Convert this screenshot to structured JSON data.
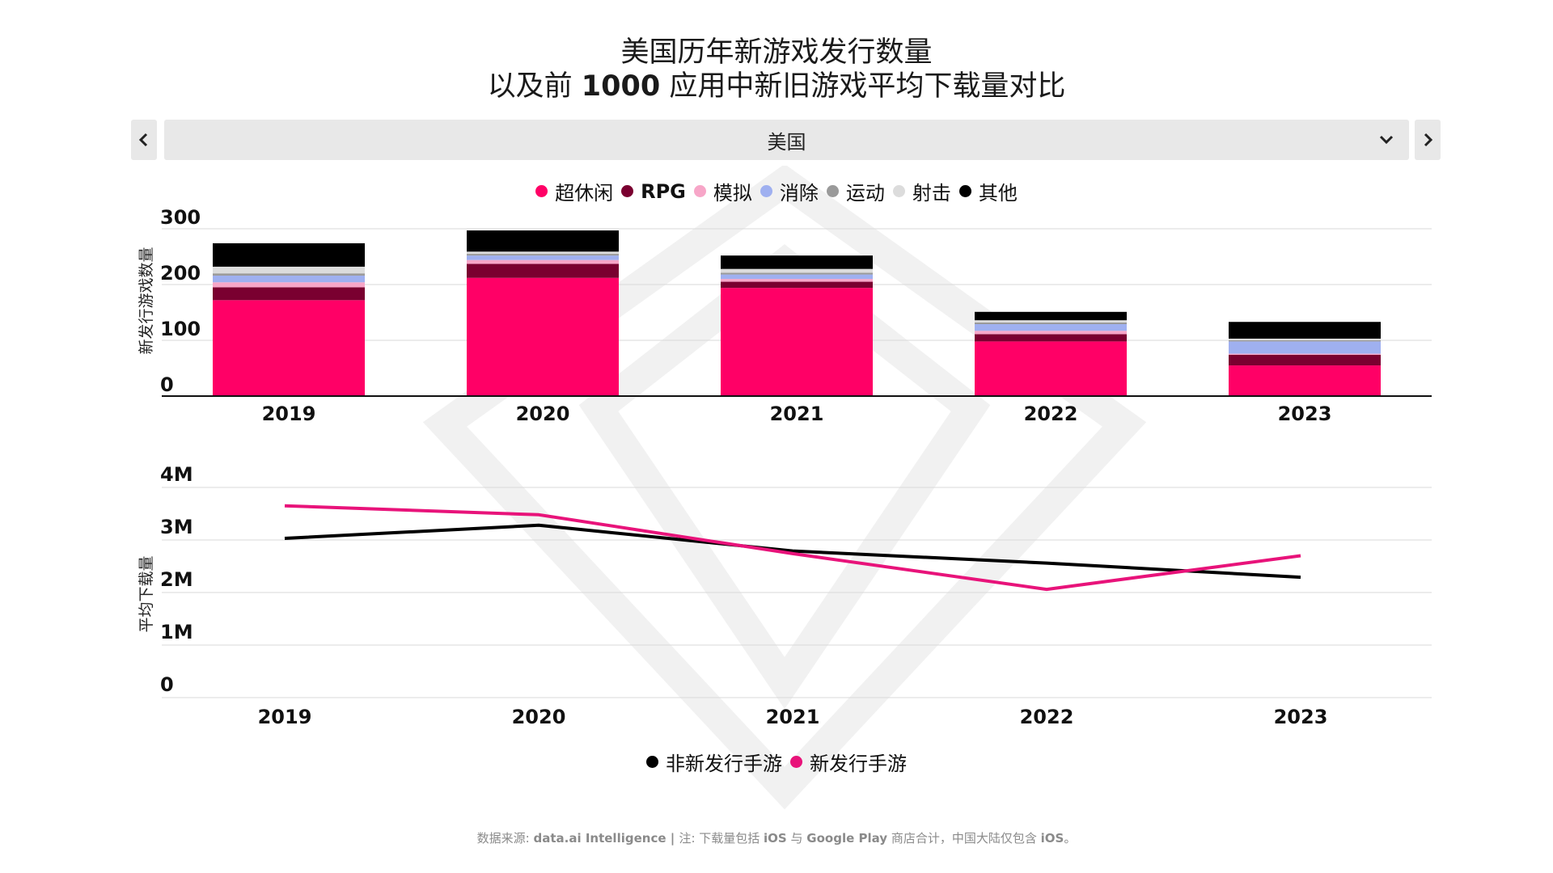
{
  "title": {
    "line1": "美国历年新游戏发行数量",
    "line2_pre": "以及前 ",
    "line2_bold": "1000",
    "line2_post": " 应用中新旧游戏平均下载量对比"
  },
  "selector": {
    "value": "美国",
    "prev_icon": "chevron-left-icon",
    "next_icon": "chevron-right-icon",
    "dropdown_icon": "chevron-down-icon"
  },
  "colors": {
    "超休闲": "#ff0066",
    "RPG": "#7a0030",
    "模拟": "#f7a6c8",
    "消除": "#9fb0f0",
    "运动": "#9a9a9a",
    "射击": "#dcdcdc",
    "其他": "#000000",
    "non_new": "#000000",
    "new": "#e8137a"
  },
  "chart_data": [
    {
      "type": "bar",
      "stacked": true,
      "ylabel": "新发行游戏数量",
      "ylim": [
        0,
        300
      ],
      "yticks": [
        0,
        100,
        200,
        300
      ],
      "categories": [
        "2019",
        "2020",
        "2021",
        "2022",
        "2023"
      ],
      "series": [
        {
          "name": "超休闲",
          "bold": false,
          "values": [
            172,
            212,
            194,
            98,
            55
          ]
        },
        {
          "name": "RPG",
          "bold": true,
          "values": [
            23,
            25,
            11,
            13,
            19
          ]
        },
        {
          "name": "模拟",
          "bold": false,
          "values": [
            9,
            7,
            5,
            6,
            2
          ]
        },
        {
          "name": "消除",
          "bold": false,
          "values": [
            12,
            8,
            8,
            12,
            22
          ]
        },
        {
          "name": "运动",
          "bold": false,
          "values": [
            4,
            3,
            3,
            3,
            2
          ]
        },
        {
          "name": "射击",
          "bold": false,
          "values": [
            12,
            4,
            7,
            4,
            3
          ]
        },
        {
          "name": "其他",
          "bold": false,
          "values": [
            42,
            38,
            24,
            15,
            30
          ]
        }
      ],
      "legend": "top-center"
    },
    {
      "type": "line",
      "ylabel": "平均下载量",
      "ylim": [
        0,
        4000000
      ],
      "yticks": [
        0,
        1000000,
        2000000,
        3000000,
        4000000
      ],
      "ytick_labels": [
        "0",
        "1M",
        "2M",
        "3M",
        "4M"
      ],
      "categories": [
        "2019",
        "2020",
        "2021",
        "2022",
        "2023"
      ],
      "series": [
        {
          "name": "非新发行手游",
          "color_key": "non_new",
          "values": [
            3030000,
            3280000,
            2790000,
            2560000,
            2290000
          ]
        },
        {
          "name": "新发行手游",
          "color_key": "new",
          "values": [
            3650000,
            3480000,
            2740000,
            2060000,
            2700000
          ]
        }
      ],
      "legend": "bottom-center"
    }
  ],
  "footer": {
    "p1": "数据来源: ",
    "p2": "data.ai Intelligence | ",
    "p3": "注: 下载量包括 ",
    "p4": "iOS",
    "p5": " 与 ",
    "p6": "Google Play",
    "p7": " 商店合计，中国大陆仅包含 ",
    "p8": "iOS",
    "p9": "。"
  }
}
